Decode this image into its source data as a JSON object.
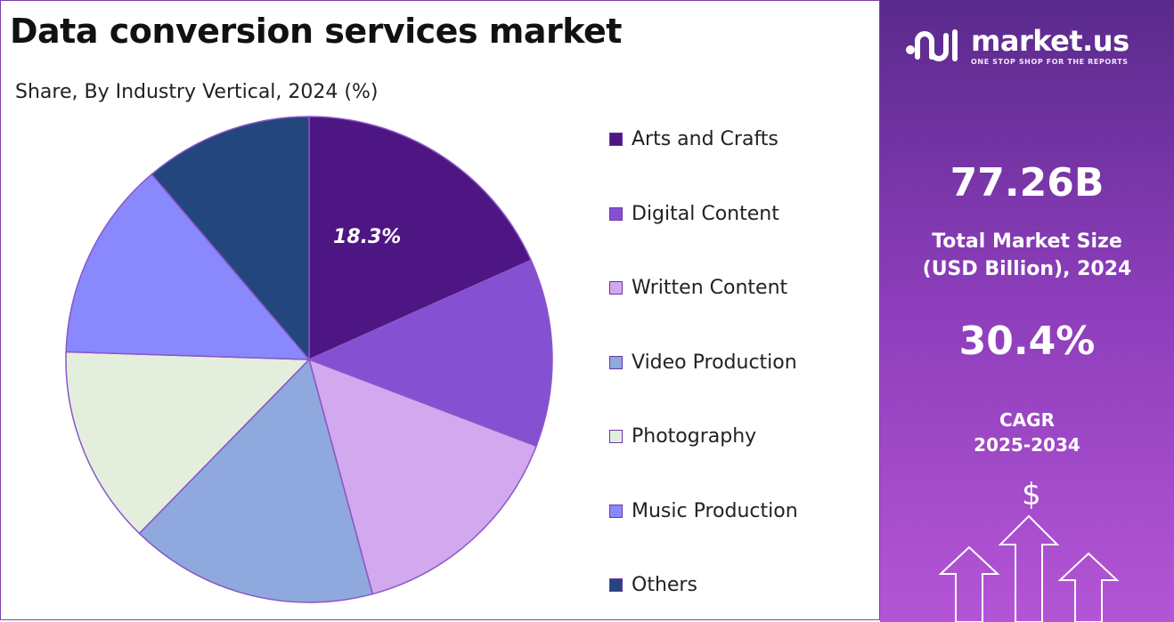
{
  "title": "Data conversion services market",
  "subtitle": "Share, By Industry Vertical, 2024 (%)",
  "chart_data": {
    "type": "pie",
    "start_angle_deg": 0,
    "direction": "clockwise",
    "slices": [
      {
        "name": "Arts and Crafts",
        "value": 18.3,
        "color": "#4e1683",
        "label": "18.3%"
      },
      {
        "name": "Digital Content",
        "value": 12.5,
        "color": "#8650d3",
        "label": ""
      },
      {
        "name": "Written Content",
        "value": 15.0,
        "color": "#d2a8ee",
        "label": ""
      },
      {
        "name": "Video Production",
        "value": 16.5,
        "color": "#8fa8dd",
        "label": ""
      },
      {
        "name": "Photography",
        "value": 13.2,
        "color": "#e4eedd",
        "label": ""
      },
      {
        "name": "Music Production",
        "value": 13.3,
        "color": "#8a88fd",
        "label": ""
      },
      {
        "name": "Others",
        "value": 11.2,
        "color": "#24467e",
        "label": ""
      }
    ],
    "legend_position": "right"
  },
  "sidebar": {
    "brand_name": "market.us",
    "brand_tagline": "ONE STOP SHOP FOR THE REPORTS",
    "market_size_value": "77.26B",
    "market_size_label_line1": "Total Market Size",
    "market_size_label_line2": "(USD Billion), 2024",
    "cagr_value": "30.4%",
    "cagr_label_line1": "CAGR",
    "cagr_label_line2": "2025-2034",
    "dollar_symbol": "$",
    "icons": [
      "market-us-logo-icon",
      "dollar-icon",
      "growth-arrows-icon"
    ]
  }
}
